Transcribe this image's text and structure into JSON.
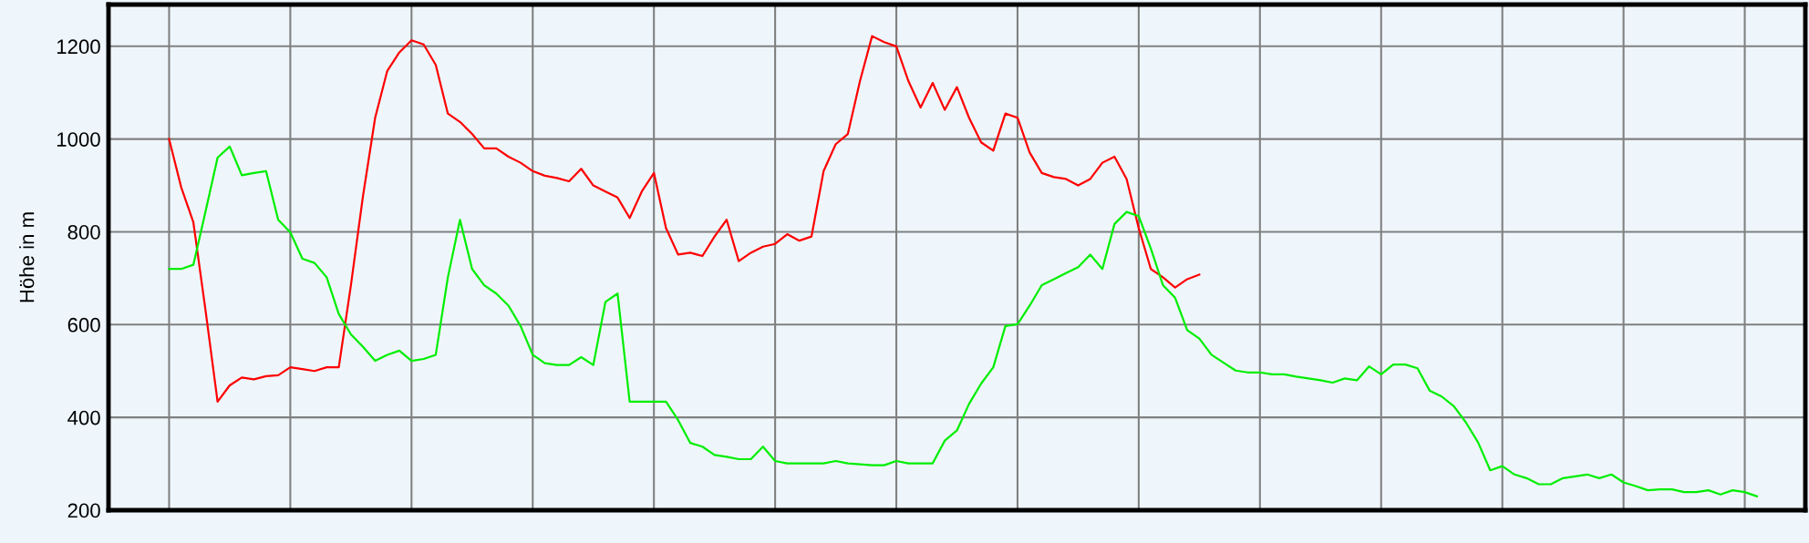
{
  "chart_data": {
    "type": "line",
    "ylabel": "Höhe in m",
    "categories": [
      null,
      null,
      null,
      null,
      null,
      null,
      null,
      null,
      null,
      null,
      null,
      null,
      null,
      null,
      null,
      null,
      null,
      null,
      null,
      null,
      null,
      null,
      null,
      null,
      null,
      null,
      null,
      null,
      null,
      null,
      null,
      null,
      null,
      null,
      null,
      null,
      null,
      null,
      null,
      null,
      null,
      null,
      null,
      null,
      null,
      null,
      null,
      null,
      null,
      null,
      null,
      null,
      null,
      null,
      null,
      null,
      null,
      null,
      null,
      null,
      null,
      null,
      null,
      null,
      null,
      null,
      null,
      null,
      null,
      null,
      null,
      null,
      null,
      null,
      null,
      null,
      null,
      null,
      null,
      null,
      null,
      null,
      null,
      null,
      null,
      null,
      null,
      null,
      null,
      null,
      null,
      null,
      null,
      null,
      null,
      null,
      null,
      null,
      null,
      null,
      null,
      null,
      null,
      null,
      null,
      null,
      null,
      null,
      null,
      null,
      null,
      null,
      null,
      null,
      null,
      null,
      null,
      null,
      null,
      null,
      null,
      null,
      null,
      null,
      null,
      null,
      null,
      null,
      null,
      null,
      null,
      null
    ],
    "series": [
      {
        "color": "#ff0000",
        "values": [
          1000,
          896,
          821,
          632,
          434,
          469,
          486,
          482,
          489,
          491,
          508,
          504,
          500,
          508,
          508,
          685,
          878,
          1046,
          1147,
          1187,
          1213,
          1204,
          1160,
          1055,
          1037,
          1011,
          980,
          980,
          962,
          949,
          931,
          921,
          916,
          909,
          936,
          900,
          887,
          874,
          830,
          887,
          927,
          808,
          751,
          755,
          748,
          790,
          826,
          737,
          755,
          768,
          774,
          795,
          781,
          790,
          931,
          989,
          1011,
          1125,
          1222,
          1209,
          1200,
          1125,
          1068,
          1121,
          1063,
          1112,
          1046,
          993,
          975,
          1055,
          1046,
          971,
          927,
          918,
          914,
          900,
          914,
          949,
          962,
          914,
          808,
          720,
          702,
          680,
          698,
          708,
          null,
          null,
          null,
          null,
          null,
          null,
          null,
          null,
          null,
          null,
          null,
          null,
          null,
          null,
          null,
          null,
          null,
          null,
          null,
          null,
          null,
          null,
          null,
          null,
          null,
          null,
          null,
          null,
          null,
          null,
          null,
          null,
          null,
          null,
          null,
          null,
          null,
          null,
          null,
          null,
          null,
          null,
          null,
          null,
          null,
          null
        ]
      },
      {
        "color": "#00ee00",
        "values": [
          720,
          720,
          729,
          843,
          960,
          984,
          922,
          927,
          931,
          826,
          799,
          742,
          733,
          702,
          623,
          579,
          552,
          522,
          535,
          544,
          522,
          526,
          535,
          702,
          826,
          720,
          685,
          667,
          641,
          597,
          535,
          517,
          513,
          513,
          530,
          513,
          649,
          667,
          434,
          434,
          434,
          434,
          394,
          345,
          337,
          319,
          315,
          310,
          310,
          337,
          306,
          301,
          301,
          301,
          301,
          306,
          301,
          299,
          297,
          297,
          306,
          301,
          301,
          301,
          350,
          372,
          429,
          473,
          508,
          597,
          601,
          641,
          685,
          698,
          711,
          724,
          751,
          720,
          817,
          843,
          834,
          764,
          685,
          658,
          588,
          570,
          535,
          518,
          501,
          497,
          497,
          493,
          493,
          488,
          484,
          480,
          475,
          484,
          480,
          510,
          493,
          514,
          514,
          506,
          458,
          445,
          424,
          389,
          346,
          286,
          295,
          277,
          269,
          256,
          256,
          269,
          273,
          277,
          269,
          277,
          260,
          252,
          243,
          245,
          245,
          239,
          239,
          243,
          234,
          243,
          239,
          230
        ]
      }
    ],
    "ylim": [
      200,
      1290
    ],
    "yticks": [
      200,
      400,
      600,
      800,
      1000,
      1200
    ],
    "grid": true
  }
}
